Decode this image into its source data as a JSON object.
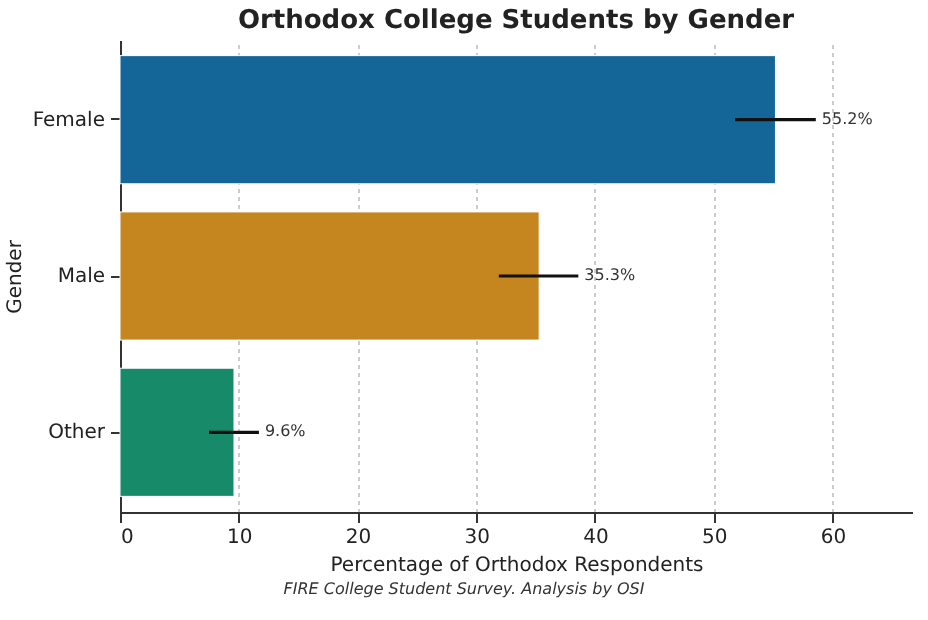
{
  "chart_data": {
    "type": "bar",
    "orientation": "horizontal",
    "title": "Orthodox College Students by Gender",
    "xlabel": "Percentage of Orthodox Respondents",
    "ylabel": "Gender",
    "categories": [
      "Female",
      "Male",
      "Other"
    ],
    "values": [
      55.2,
      35.3,
      9.6
    ],
    "colors": [
      "#146699",
      "#c5861f",
      "#178a69"
    ],
    "errors": [
      [
        51.8,
        58.6
      ],
      [
        31.9,
        38.6
      ],
      [
        7.5,
        11.7
      ]
    ],
    "value_labels": [
      "55.2%",
      "35.3%",
      "9.6%"
    ],
    "xlim": [
      0,
      66.7
    ],
    "xticks": [
      0,
      10,
      20,
      30,
      40,
      50,
      60
    ],
    "grid": "x",
    "annotations": [
      "FIRE College Student Survey. Analysis by OSI"
    ]
  }
}
